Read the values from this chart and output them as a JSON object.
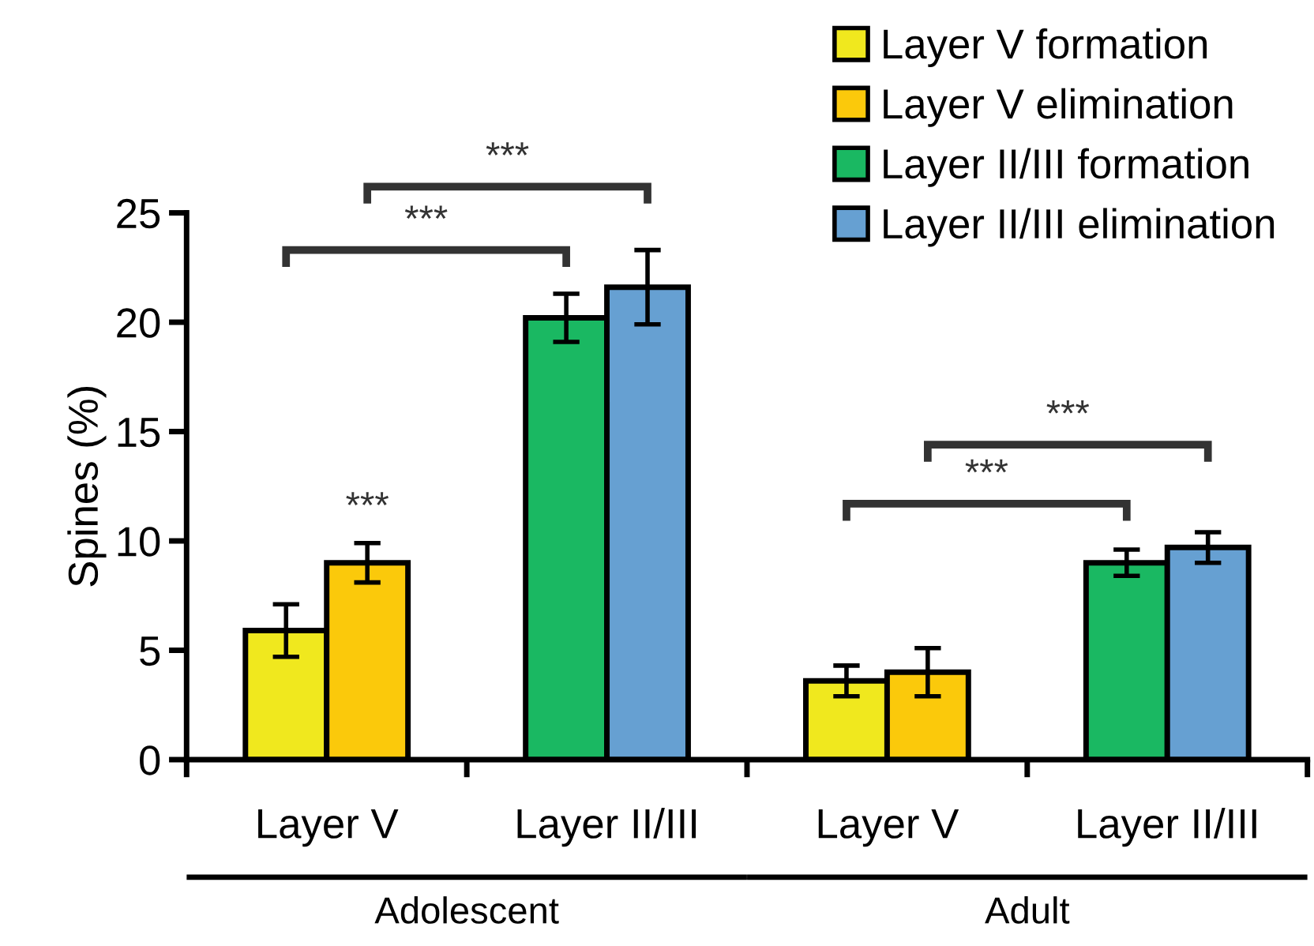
{
  "chart_data": {
    "type": "bar",
    "categories": [
      "Layer V",
      "Layer II/III",
      "Layer V",
      "Layer II/III"
    ],
    "ylabel": "Spines (%)",
    "ylim": [
      0,
      25
    ],
    "yticks": [
      0,
      5,
      10,
      15,
      20,
      25
    ],
    "series": [
      {
        "name": "Layer V formation",
        "color": "#f0e81e",
        "values": [
          5.9,
          null,
          3.6,
          null
        ],
        "errors": [
          1.2,
          null,
          0.7,
          null
        ]
      },
      {
        "name": "Layer V elimination",
        "color": "#fbc90b",
        "values": [
          9.0,
          null,
          4.0,
          null
        ],
        "errors": [
          0.9,
          null,
          1.1,
          null
        ]
      },
      {
        "name": "Layer II/III formation",
        "color": "#1ab862",
        "values": [
          null,
          20.2,
          null,
          9.0
        ],
        "errors": [
          null,
          1.1,
          null,
          0.6
        ]
      },
      {
        "name": "Layer II/III elimination",
        "color": "#66a0d2",
        "values": [
          null,
          21.6,
          null,
          9.7
        ],
        "errors": [
          null,
          1.7,
          null,
          0.7
        ]
      }
    ],
    "annotations": [
      "***",
      "***",
      "***",
      "***",
      "***",
      "Adolescent",
      "Adult"
    ],
    "legend": "top right",
    "grid": false
  }
}
